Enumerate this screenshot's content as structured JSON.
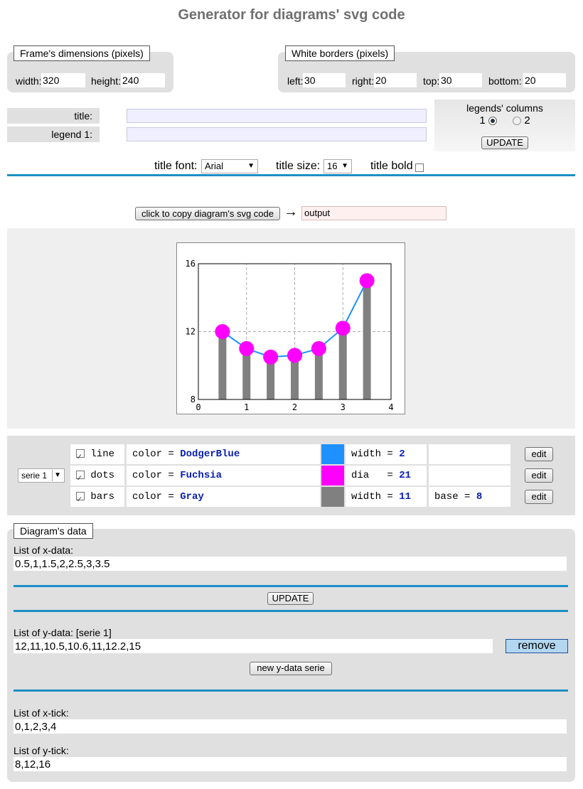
{
  "page_title": "Generator for diagrams' svg code",
  "frame": {
    "legend": "Frame's dimensions (pixels)",
    "width_label": "width:",
    "width_value": "320",
    "height_label": "height:",
    "height_value": "240"
  },
  "borders": {
    "legend": "White borders (pixels)",
    "left_label": "left:",
    "left_value": "30",
    "right_label": "right:",
    "right_value": "20",
    "top_label": "top:",
    "top_value": "30",
    "bottom_label": "bottom:",
    "bottom_value": "20"
  },
  "title_label": "title:",
  "legend1_label": "legend 1:",
  "legend_columns": {
    "label": "legends' columns",
    "opt1": "1",
    "opt2": "2",
    "selected": "1",
    "update": "UPDATE"
  },
  "font_controls": {
    "font_label": "title font:",
    "font_value": "Arial",
    "size_label": "title size:",
    "size_value": "16",
    "bold_label": "title bold"
  },
  "copy": {
    "button": "click to copy diagram's svg code",
    "arrow": "→",
    "output": "output"
  },
  "series_select": "serie 1",
  "series_rows": [
    {
      "enabled": true,
      "type": "line",
      "color_prefix": "color = ",
      "color": "DodgerBlue",
      "swatch": "#1e90ff",
      "param1_prefix": "width = ",
      "param1": "2",
      "param2_prefix": "",
      "param2": "",
      "edit": "edit"
    },
    {
      "enabled": true,
      "type": "dots",
      "color_prefix": "color = ",
      "color": "Fuchsia",
      "swatch": "#ff00ff",
      "param1_prefix": "dia   = ",
      "param1": "21",
      "param2_prefix": "",
      "param2": "",
      "edit": "edit"
    },
    {
      "enabled": true,
      "type": "bars",
      "color_prefix": "color = ",
      "color": "Gray",
      "swatch": "#808080",
      "param1_prefix": "width = ",
      "param1": "11",
      "param2_prefix": "base = ",
      "param2": "8",
      "edit": "edit"
    }
  ],
  "data_section": {
    "legend": "Diagram's data",
    "xdata_label": "List of x-data:",
    "xdata_value": "0.5,1,1.5,2,2.5,3,3.5",
    "update": "UPDATE",
    "ydata_label": "List of y-data: [serie 1]",
    "ydata_value": "12,11,10.5,10.6,11,12.2,15",
    "remove": "remove",
    "new_serie": "new y-data serie",
    "xtick_label": "List of x-tick:",
    "xtick_value": "0,1,2,3,4",
    "ytick_label": "List of y-tick:",
    "ytick_value": "8,12,16"
  },
  "chart_data": {
    "type": "line",
    "x": [
      0.5,
      1,
      1.5,
      2,
      2.5,
      3,
      3.5
    ],
    "series": [
      {
        "values": [
          12,
          11,
          10.5,
          10.6,
          11,
          12.2,
          15
        ]
      }
    ],
    "xticks": [
      "0",
      "1",
      "2",
      "3",
      "4"
    ],
    "yticks": [
      "8",
      "12",
      "16"
    ],
    "xlim": [
      0,
      4
    ],
    "ylim": [
      8,
      16
    ],
    "bar_base": 8,
    "colors": {
      "line": "#1e90ff",
      "dots": "#ff00ff",
      "bars": "#808080"
    },
    "grid": true
  }
}
